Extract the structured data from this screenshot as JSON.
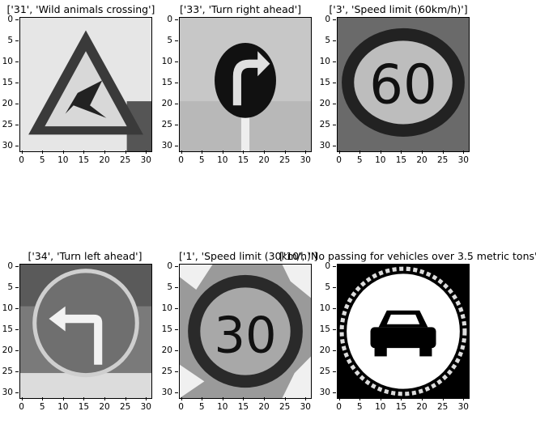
{
  "panels": [
    {
      "title": "['31', 'Wild animals crossing']",
      "sign": "triangle-deer-icon"
    },
    {
      "title": "['33', 'Turn right ahead']",
      "sign": "turn-right-arrow-icon"
    },
    {
      "title": "['3', 'Speed limit (60km/h)']",
      "sign": "speed-60-icon",
      "number": "60"
    },
    {
      "title": "['34', 'Turn left ahead']",
      "sign": "turn-left-arrow-icon"
    },
    {
      "title": "['1', 'Speed limit (30km/h)']",
      "sign": "speed-30-icon",
      "number": "30"
    },
    {
      "title": "['10', 'No passing for vehicles over 3.5 metric tons']",
      "sign": "no-passing-trucks-icon"
    }
  ],
  "axes": {
    "yticks": [
      "0",
      "5",
      "10",
      "15",
      "20",
      "25",
      "30"
    ],
    "xticks": [
      "0",
      "5",
      "10",
      "15",
      "20",
      "25",
      "30"
    ]
  }
}
